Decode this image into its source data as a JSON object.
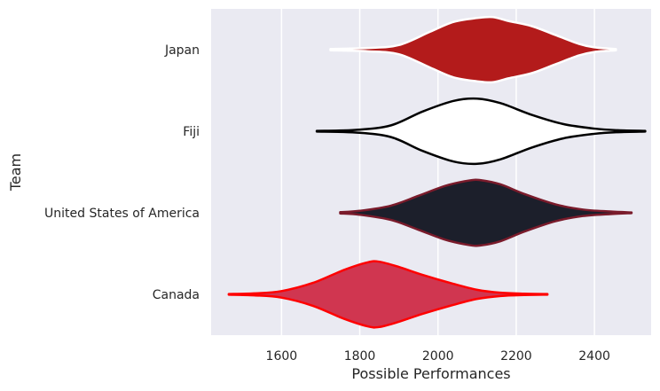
{
  "chart_data": {
    "type": "violin",
    "orientation": "horizontal",
    "xlabel": "Possible Performances",
    "ylabel": "Team",
    "xlim": [
      1420,
      2545
    ],
    "xticks": [
      1600,
      1800,
      2000,
      2200,
      2400
    ],
    "grid": true,
    "categories": [
      "Japan",
      "Fiji",
      "United States of America",
      "Canada"
    ],
    "series": [
      {
        "name": "Japan",
        "fill": "#b31b1b",
        "edge": "#ffffff",
        "density": [
          [
            1725,
            0.02
          ],
          [
            1820,
            0.05
          ],
          [
            1900,
            0.14
          ],
          [
            1980,
            0.55
          ],
          [
            2040,
            0.85
          ],
          [
            2100,
            0.97
          ],
          [
            2140,
            1.0
          ],
          [
            2180,
            0.88
          ],
          [
            2240,
            0.72
          ],
          [
            2300,
            0.45
          ],
          [
            2360,
            0.18
          ],
          [
            2400,
            0.07
          ],
          [
            2455,
            0.02
          ]
        ]
      },
      {
        "name": "Fiji",
        "fill": "#ffffff",
        "edge": "#000000",
        "density": [
          [
            1690,
            0.01
          ],
          [
            1790,
            0.04
          ],
          [
            1880,
            0.18
          ],
          [
            1960,
            0.6
          ],
          [
            2040,
            0.93
          ],
          [
            2100,
            1.0
          ],
          [
            2160,
            0.86
          ],
          [
            2240,
            0.5
          ],
          [
            2320,
            0.22
          ],
          [
            2400,
            0.08
          ],
          [
            2460,
            0.03
          ],
          [
            2530,
            0.01
          ]
        ]
      },
      {
        "name": "United States of America",
        "fill": "#1c1f2b",
        "edge": "#7a1b2b",
        "density": [
          [
            1750,
            0.02
          ],
          [
            1800,
            0.06
          ],
          [
            1880,
            0.22
          ],
          [
            1950,
            0.52
          ],
          [
            2020,
            0.83
          ],
          [
            2080,
            0.99
          ],
          [
            2110,
            1.0
          ],
          [
            2160,
            0.87
          ],
          [
            2220,
            0.58
          ],
          [
            2300,
            0.26
          ],
          [
            2370,
            0.1
          ],
          [
            2440,
            0.04
          ],
          [
            2495,
            0.01
          ]
        ]
      },
      {
        "name": "Canada",
        "fill": "#d03650",
        "edge": "#ff0000",
        "density": [
          [
            1465,
            0.01
          ],
          [
            1530,
            0.03
          ],
          [
            1600,
            0.1
          ],
          [
            1680,
            0.35
          ],
          [
            1760,
            0.75
          ],
          [
            1820,
            0.98
          ],
          [
            1850,
            1.0
          ],
          [
            1900,
            0.84
          ],
          [
            1960,
            0.6
          ],
          [
            2040,
            0.32
          ],
          [
            2100,
            0.14
          ],
          [
            2160,
            0.05
          ],
          [
            2220,
            0.02
          ],
          [
            2280,
            0.01
          ]
        ]
      }
    ]
  }
}
